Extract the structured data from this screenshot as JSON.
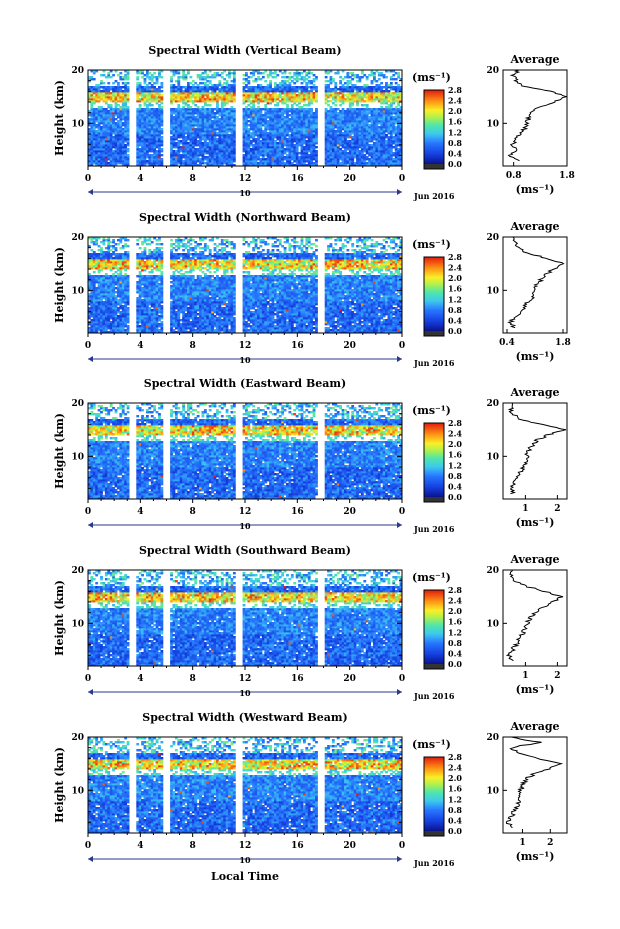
{
  "figure": {
    "xlabel": "Local Time",
    "date_label": "Jun 2016",
    "date_day": "10",
    "ylabel": "Height (km)",
    "unit": "(ms⁻¹)",
    "avg_title": "Average",
    "avg_xunit": "(ms⁻¹)"
  },
  "chart_data": [
    {
      "type": "heatmap",
      "title": "Spectral Width (Vertical Beam)",
      "x_ticks": [
        "0",
        "4",
        "8",
        "12",
        "16",
        "20",
        "0"
      ],
      "y_ticks": [
        "20",
        "10"
      ],
      "xlim": [
        0,
        24
      ],
      "ylim": [
        2,
        20
      ],
      "colorbar": {
        "range": [
          0.0,
          2.8
        ],
        "ticks": [
          "2.8",
          "2.4",
          "2.0",
          "1.6",
          "1.2",
          "0.8",
          "0.4",
          "0.0"
        ]
      },
      "gaps": [
        [
          3.3,
          3.6
        ],
        [
          5.8,
          6.1
        ],
        [
          11.3,
          11.7
        ],
        [
          17.7,
          18.0
        ]
      ],
      "layers": [
        {
          "y": [
            14,
            16
          ],
          "value": 2.4
        },
        {
          "y": [
            8,
            13
          ],
          "value": 0.8
        }
      ],
      "profile": {
        "xlim": [
          0.6,
          1.8
        ],
        "x_ticks": [
          "0.8",
          "1.8"
        ],
        "x_tick_values": [
          0.8,
          1.8
        ],
        "y_ticks": [
          "20",
          "10"
        ],
        "height": [
          3,
          4,
          5,
          6,
          7,
          8,
          9,
          10,
          11,
          12,
          13,
          14,
          15,
          16,
          17,
          18,
          19,
          20
        ],
        "value": [
          0.95,
          0.72,
          0.9,
          0.78,
          0.84,
          0.93,
          1.0,
          1.05,
          1.08,
          1.15,
          1.25,
          1.55,
          1.8,
          1.5,
          1.0,
          0.85,
          0.8,
          0.9
        ]
      }
    },
    {
      "type": "heatmap",
      "title": "Spectral Width (Northward Beam)",
      "x_ticks": [
        "0",
        "4",
        "8",
        "12",
        "16",
        "20",
        "0"
      ],
      "y_ticks": [
        "20",
        "10"
      ],
      "xlim": [
        0,
        24
      ],
      "ylim": [
        2,
        20
      ],
      "colorbar": {
        "range": [
          0.0,
          2.8
        ],
        "ticks": [
          "2.8",
          "2.4",
          "2.0",
          "1.6",
          "1.2",
          "0.8",
          "0.4",
          "0.0"
        ]
      },
      "gaps": [
        [
          3.3,
          3.6
        ],
        [
          5.8,
          6.1
        ],
        [
          11.3,
          11.7
        ],
        [
          17.7,
          18.0
        ]
      ],
      "layers": [
        {
          "y": [
            14,
            16
          ],
          "value": 2.4
        },
        {
          "y": [
            8,
            13
          ],
          "value": 0.8
        }
      ],
      "profile": {
        "xlim": [
          0.3,
          1.9
        ],
        "x_ticks": [
          "0.4",
          "1.8"
        ],
        "x_tick_values": [
          0.4,
          1.8
        ],
        "y_ticks": [
          "20",
          "10"
        ],
        "height": [
          3,
          4,
          5,
          6,
          7,
          8,
          9,
          10,
          11,
          12,
          13,
          14,
          15,
          16,
          17,
          18,
          19,
          20
        ],
        "value": [
          0.55,
          0.5,
          0.6,
          0.75,
          0.85,
          0.95,
          1.05,
          1.1,
          1.15,
          1.25,
          1.35,
          1.6,
          1.85,
          1.4,
          0.9,
          0.7,
          0.6,
          0.55
        ]
      }
    },
    {
      "type": "heatmap",
      "title": "Spectral Width (Eastward Beam)",
      "x_ticks": [
        "0",
        "4",
        "8",
        "12",
        "16",
        "20",
        "0"
      ],
      "y_ticks": [
        "20",
        "10"
      ],
      "xlim": [
        0,
        24
      ],
      "ylim": [
        2,
        20
      ],
      "colorbar": {
        "range": [
          0.0,
          2.8
        ],
        "ticks": [
          "2.8",
          "2.4",
          "2.0",
          "1.6",
          "1.2",
          "0.8",
          "0.4",
          "0.0"
        ]
      },
      "gaps": [
        [
          3.3,
          3.6
        ],
        [
          5.8,
          6.1
        ],
        [
          11.3,
          11.7
        ],
        [
          17.7,
          18.0
        ]
      ],
      "layers": [
        {
          "y": [
            14,
            16
          ],
          "value": 2.4
        },
        {
          "y": [
            8,
            13
          ],
          "value": 0.8
        }
      ],
      "profile": {
        "xlim": [
          0.3,
          2.3
        ],
        "x_ticks": [
          "1",
          "2"
        ],
        "x_tick_values": [
          1,
          2
        ],
        "y_ticks": [
          "20",
          "10"
        ],
        "height": [
          3,
          4,
          5,
          6,
          7,
          8,
          9,
          10,
          11,
          12,
          13,
          14,
          15,
          16,
          17,
          18,
          19,
          20
        ],
        "value": [
          0.6,
          0.55,
          0.65,
          0.75,
          0.85,
          0.95,
          1.0,
          1.05,
          1.1,
          1.2,
          1.35,
          1.7,
          2.2,
          1.5,
          0.85,
          0.6,
          0.55,
          0.6
        ]
      }
    },
    {
      "type": "heatmap",
      "title": "Spectral Width (Southward Beam)",
      "x_ticks": [
        "0",
        "4",
        "8",
        "12",
        "16",
        "20",
        "0"
      ],
      "y_ticks": [
        "20",
        "10"
      ],
      "xlim": [
        0,
        24
      ],
      "ylim": [
        2,
        20
      ],
      "colorbar": {
        "range": [
          0.0,
          2.8
        ],
        "ticks": [
          "2.8",
          "2.4",
          "2.0",
          "1.6",
          "1.2",
          "0.8",
          "0.4",
          "0.0"
        ]
      },
      "gaps": [
        [
          3.3,
          3.6
        ],
        [
          5.8,
          6.1
        ],
        [
          11.3,
          11.7
        ],
        [
          17.7,
          18.0
        ]
      ],
      "layers": [
        {
          "y": [
            14,
            16
          ],
          "value": 2.4
        },
        {
          "y": [
            8,
            13
          ],
          "value": 0.8
        }
      ],
      "profile": {
        "xlim": [
          0.3,
          2.3
        ],
        "x_ticks": [
          "1",
          "2"
        ],
        "x_tick_values": [
          1,
          2
        ],
        "y_ticks": [
          "20",
          "10"
        ],
        "height": [
          3,
          4,
          5,
          6,
          7,
          8,
          9,
          10,
          11,
          12,
          13,
          14,
          15,
          16,
          17,
          18,
          19,
          20
        ],
        "value": [
          0.55,
          0.5,
          0.6,
          0.7,
          0.8,
          0.9,
          1.0,
          1.05,
          1.15,
          1.3,
          1.55,
          1.85,
          2.1,
          1.6,
          1.0,
          0.7,
          0.55,
          0.6
        ]
      }
    },
    {
      "type": "heatmap",
      "title": "Spectral Width (Westward Beam)",
      "x_ticks": [
        "0",
        "4",
        "8",
        "12",
        "16",
        "20",
        "0"
      ],
      "y_ticks": [
        "20",
        "10"
      ],
      "xlim": [
        0,
        24
      ],
      "ylim": [
        2,
        20
      ],
      "colorbar": {
        "range": [
          0.0,
          2.8
        ],
        "ticks": [
          "2.8",
          "2.4",
          "2.0",
          "1.6",
          "1.2",
          "0.8",
          "0.4",
          "0.0"
        ]
      },
      "gaps": [
        [
          3.3,
          3.6
        ],
        [
          5.8,
          6.1
        ],
        [
          11.3,
          11.7
        ],
        [
          17.7,
          18.0
        ]
      ],
      "layers": [
        {
          "y": [
            14,
            16
          ],
          "value": 2.4
        },
        {
          "y": [
            8,
            13
          ],
          "value": 0.8
        }
      ],
      "profile": {
        "xlim": [
          0.3,
          2.6
        ],
        "x_ticks": [
          "1",
          "2"
        ],
        "x_tick_values": [
          1,
          2
        ],
        "y_ticks": [
          "20",
          "10"
        ],
        "height": [
          3,
          4,
          5,
          6,
          7,
          8,
          9,
          10,
          11,
          12,
          13,
          14,
          15,
          16,
          17,
          18,
          19,
          20
        ],
        "value": [
          0.55,
          0.5,
          0.6,
          0.7,
          0.8,
          0.85,
          0.9,
          0.95,
          1.0,
          1.1,
          1.4,
          1.9,
          2.4,
          1.5,
          0.8,
          0.6,
          1.6,
          0.6
        ]
      }
    }
  ]
}
